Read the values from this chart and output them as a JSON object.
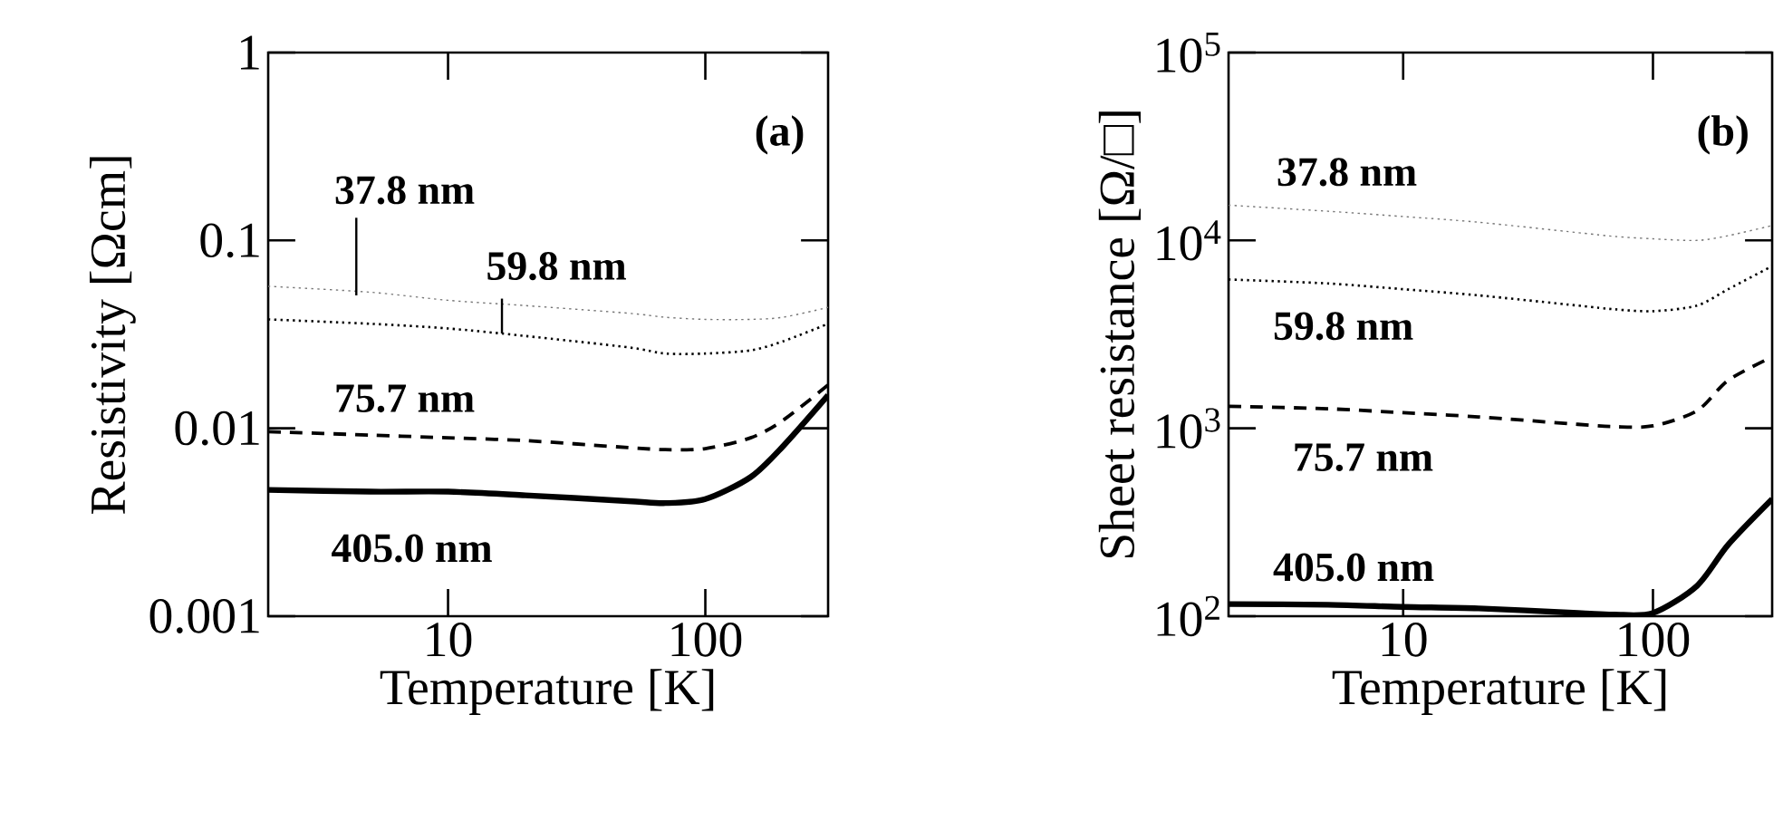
{
  "chart_data": [
    {
      "type": "line",
      "xlabel": "Temperature [K]",
      "ylabel": "Resistivity [Ωcm]",
      "annotations": [
        "(a)"
      ],
      "log": "xy",
      "xlim": [
        2,
        300
      ],
      "ylim": [
        0.001,
        1
      ],
      "xticks": [
        10,
        100
      ],
      "yticks": [
        0.001,
        0.01,
        0.1,
        1
      ],
      "x": [
        2,
        5,
        10,
        20,
        50,
        70,
        100,
        150,
        200,
        300
      ],
      "series": [
        {
          "name": "37.8 nm",
          "color": "#777777",
          "line_style": "dotted",
          "values": [
            0.057,
            0.053,
            0.048,
            0.045,
            0.041,
            0.039,
            0.038,
            0.038,
            0.039,
            0.044
          ]
        },
        {
          "name": "59.8 nm",
          "color": "#000000",
          "line_style": "dotted",
          "values": [
            0.038,
            0.036,
            0.034,
            0.031,
            0.027,
            0.025,
            0.025,
            0.026,
            0.029,
            0.036
          ]
        },
        {
          "name": "75.7 nm",
          "color": "#000000",
          "line_style": "dashed",
          "values": [
            0.0096,
            0.0092,
            0.0089,
            0.0086,
            0.0079,
            0.0077,
            0.0078,
            0.0089,
            0.011,
            0.017
          ]
        },
        {
          "name": "405.0 nm",
          "color": "#000000",
          "line_style": "solid",
          "values": [
            0.0047,
            0.0046,
            0.0046,
            0.0044,
            0.0041,
            0.004,
            0.0042,
            0.0055,
            0.008,
            0.015
          ]
        }
      ]
    },
    {
      "type": "line",
      "xlabel": "Temperature [K]",
      "ylabel": "Sheet resistance [Ω/□]",
      "annotations": [
        "(b)"
      ],
      "log": "xy",
      "xlim": [
        2,
        300
      ],
      "ylim": [
        100,
        100000
      ],
      "xticks": [
        10,
        100
      ],
      "yticks": [
        {
          "value": 100,
          "label": "10$^{2}$"
        },
        {
          "value": 1000,
          "label": "10$^{3}$"
        },
        {
          "value": 10000,
          "label": "10$^{4}$"
        },
        {
          "value": 100000,
          "label": "10$^{5}$"
        }
      ],
      "x": [
        2,
        5,
        10,
        20,
        50,
        70,
        100,
        150,
        200,
        300
      ],
      "series": [
        {
          "name": "37.8 nm",
          "color": "#777777",
          "line_style": "dotted",
          "values": [
            15400,
            14300,
            13400,
            12500,
            11000,
            10500,
            10200,
            10000,
            10600,
            12000
          ]
        },
        {
          "name": "59.8 nm",
          "color": "#000000",
          "line_style": "dotted",
          "values": [
            6200,
            5900,
            5500,
            5100,
            4500,
            4300,
            4200,
            4500,
            5500,
            7300
          ]
        },
        {
          "name": "75.7 nm",
          "color": "#000000",
          "line_style": "dashed",
          "values": [
            1310,
            1270,
            1210,
            1150,
            1050,
            1020,
            1030,
            1240,
            1800,
            2400
          ]
        },
        {
          "name": "405.0 nm",
          "color": "#000000",
          "line_style": "solid",
          "values": [
            116,
            115,
            112,
            110,
            104,
            102,
            104,
            145,
            240,
            420
          ]
        }
      ]
    }
  ]
}
